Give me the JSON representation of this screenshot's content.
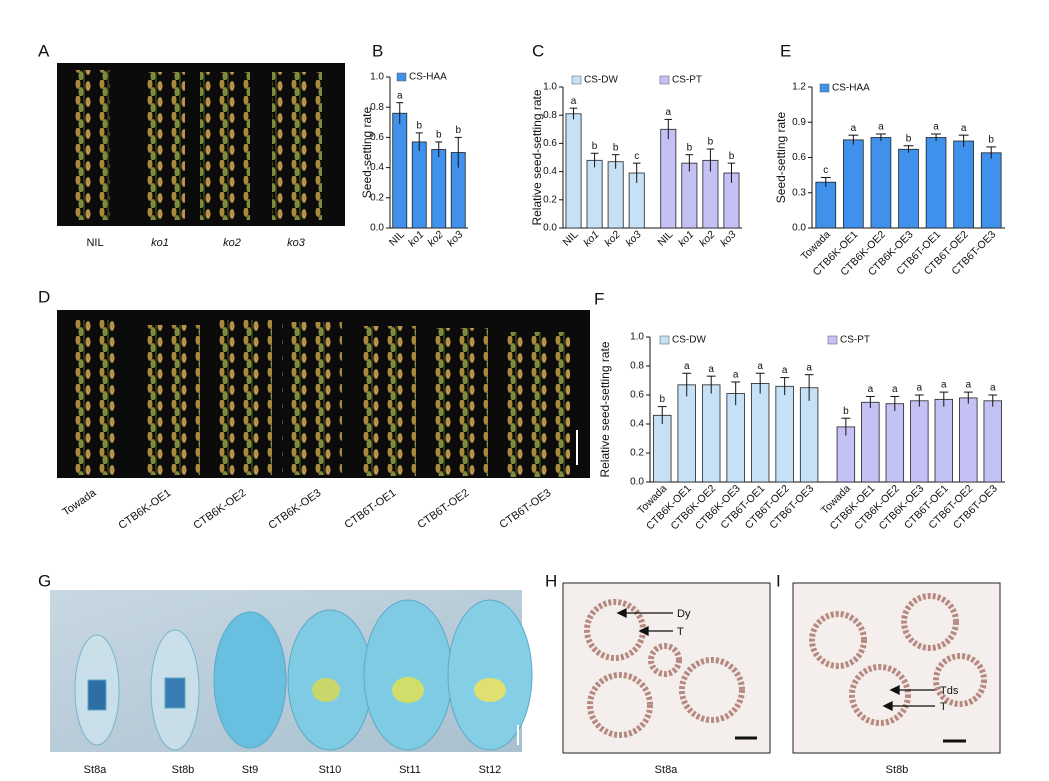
{
  "panel_labels": [
    "A",
    "B",
    "C",
    "D",
    "E",
    "F",
    "G",
    "H",
    "I"
  ],
  "photo_A": {
    "labels": [
      "NIL",
      "ko1",
      "ko2",
      "ko3"
    ]
  },
  "photo_D": {
    "labels": [
      "Towada",
      "CTB6K-OE1",
      "CTB6K-OE2",
      "CTB6K-OE3",
      "CTB6T-OE1",
      "CTB6T-OE2",
      "CTB6T-OE3"
    ]
  },
  "photo_G": {
    "labels": [
      "St8a",
      "St8b",
      "St9",
      "St10",
      "St11",
      "St12"
    ]
  },
  "photo_H": {
    "caption": "St8a",
    "annotations": [
      "Dy",
      "T"
    ]
  },
  "photo_I": {
    "caption": "St8b",
    "annotations": [
      "Tds",
      "T"
    ]
  },
  "chart_data": [
    {
      "type": "bar",
      "y_label": "Seed-setting rate",
      "categories": [
        "NIL",
        "ko1",
        "ko2",
        "ko3"
      ],
      "ylim": [
        0,
        1
      ],
      "yticks": [
        {
          "value": 0,
          "label": "0.0"
        },
        0.2,
        0.4,
        0.6,
        0.8,
        {
          "value": 1,
          "label": "1.0"
        }
      ],
      "series": [
        {
          "name": "CS-HAA",
          "color": "#3f91ec",
          "values": [
            0.76,
            0.57,
            0.52,
            0.5
          ],
          "errors": [
            0.07,
            0.06,
            0.05,
            0.1
          ],
          "letters": [
            "a",
            "b",
            "b",
            "b"
          ]
        }
      ]
    },
    {
      "type": "bar",
      "y_label": "Relative seed-setting rate",
      "categories": [
        "NIL",
        "ko1",
        "ko2",
        "ko3"
      ],
      "ylim": [
        0,
        1
      ],
      "yticks": [
        {
          "value": 0,
          "label": "0.0"
        },
        0.2,
        0.4,
        0.6,
        0.8,
        {
          "value": 1,
          "label": "1.0"
        }
      ],
      "series": [
        {
          "name": "CS-DW",
          "color": "#c6e1f6",
          "values": [
            0.81,
            0.48,
            0.47,
            0.39
          ],
          "errors": [
            0.04,
            0.05,
            0.05,
            0.07
          ],
          "letters": [
            "a",
            "b",
            "b",
            "c"
          ]
        },
        {
          "name": "CS-PT",
          "color": "#c4c2f4",
          "values": [
            0.7,
            0.46,
            0.48,
            0.39
          ],
          "errors": [
            0.07,
            0.06,
            0.08,
            0.07
          ],
          "letters": [
            "a",
            "b",
            "b",
            "b"
          ]
        }
      ]
    },
    {
      "type": "bar",
      "y_label": "Seed-setting rate",
      "categories": [
        "Towada",
        "CTB6K-OE1",
        "CTB6K-OE2",
        "CTB6K-OE3",
        "CTB6T-OE1",
        "CTB6T-OE2",
        "CTB6T-OE3"
      ],
      "ylim": [
        0,
        1.2
      ],
      "yticks": [
        {
          "value": 0,
          "label": "0.0"
        },
        0.3,
        0.6,
        0.9,
        1.2
      ],
      "series": [
        {
          "name": "CS-HAA",
          "color": "#3f91ec",
          "values": [
            0.39,
            0.75,
            0.77,
            0.67,
            0.77,
            0.74,
            0.64
          ],
          "errors": [
            0.04,
            0.04,
            0.03,
            0.03,
            0.03,
            0.05,
            0.05
          ],
          "letters": [
            "c",
            "a",
            "a",
            "b",
            "a",
            "a",
            "b"
          ]
        }
      ]
    },
    {
      "type": "bar",
      "y_label": "Relative seed-setting rate",
      "categories": [
        "Towada",
        "CTB6K-OE1",
        "CTB6K-OE2",
        "CTB6K-OE3",
        "CTB6T-OE1",
        "CTB6T-OE2",
        "CTB6T-OE3"
      ],
      "ylim": [
        0,
        1
      ],
      "yticks": [
        {
          "value": 0,
          "label": "0.0"
        },
        0.2,
        0.4,
        0.6,
        0.8,
        {
          "value": 1,
          "label": "1.0"
        }
      ],
      "series": [
        {
          "name": "CS-DW",
          "color": "#c6e1f6",
          "values": [
            0.46,
            0.67,
            0.67,
            0.61,
            0.68,
            0.66,
            0.65
          ],
          "errors": [
            0.06,
            0.08,
            0.06,
            0.08,
            0.07,
            0.06,
            0.09
          ],
          "letters": [
            "b",
            "a",
            "a",
            "a",
            "a",
            "a",
            "a"
          ]
        },
        {
          "name": "CS-PT",
          "color": "#c4c2f4",
          "values": [
            0.38,
            0.55,
            0.54,
            0.56,
            0.57,
            0.58,
            0.56
          ],
          "errors": [
            0.06,
            0.04,
            0.05,
            0.04,
            0.05,
            0.04,
            0.04
          ],
          "letters": [
            "b",
            "a",
            "a",
            "a",
            "a",
            "a",
            "a"
          ]
        }
      ]
    }
  ]
}
